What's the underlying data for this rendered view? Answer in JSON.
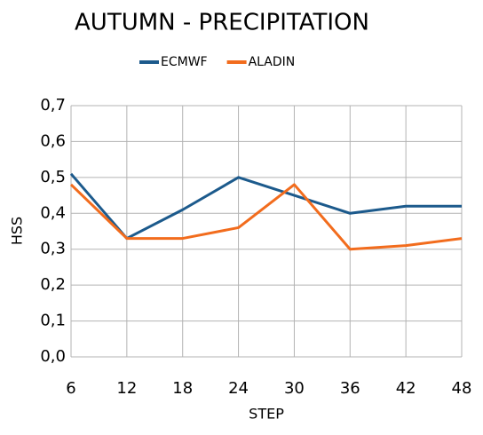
{
  "chart_data": {
    "type": "line",
    "title": "AUTUMN - PRECIPITATION",
    "x_label": "STEP",
    "y_label": "HSS",
    "x": [
      6,
      12,
      18,
      24,
      30,
      36,
      42,
      48
    ],
    "xlim": [
      6,
      48
    ],
    "xticks": [
      6,
      12,
      18,
      24,
      30,
      36,
      42,
      48
    ],
    "ylim": [
      0,
      0.7
    ],
    "yticks": [
      {
        "value": 0,
        "label": "0,0"
      },
      {
        "value": 0.1,
        "label": "0,1"
      },
      {
        "value": 0.2,
        "label": "0,2"
      },
      {
        "value": 0.3,
        "label": "0,3"
      },
      {
        "value": 0.4,
        "label": "0,4"
      },
      {
        "value": 0.5,
        "label": "0,5"
      },
      {
        "value": 0.6,
        "label": "0,6"
      },
      {
        "value": 0.7,
        "label": "0,7"
      }
    ],
    "grid": true,
    "legend": "top",
    "series": [
      {
        "name": "ECMWF",
        "color": "#1c5a8c",
        "values": [
          0.51,
          0.33,
          0.41,
          0.5,
          0.45,
          0.4,
          0.42,
          0.42
        ]
      },
      {
        "name": "ALADIN",
        "color": "#f26c1d",
        "values": [
          0.48,
          0.33,
          0.33,
          0.36,
          0.48,
          0.3,
          0.31,
          0.33
        ]
      }
    ]
  }
}
